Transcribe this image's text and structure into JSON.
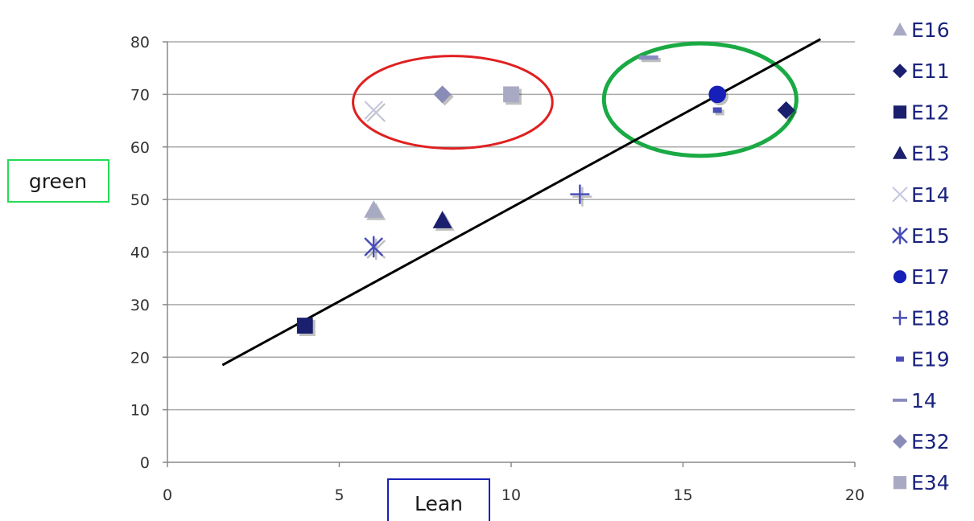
{
  "chart_data": {
    "type": "scatter",
    "title": "",
    "xlabel": "Lean",
    "ylabel": "green",
    "xlim": [
      0,
      20
    ],
    "ylim": [
      0,
      80
    ],
    "x_ticks": [
      0,
      5,
      10,
      15,
      20
    ],
    "y_ticks": [
      0,
      10,
      20,
      30,
      40,
      50,
      60,
      70,
      80
    ],
    "grid": "horizontal",
    "legend_position": "right",
    "series": [
      {
        "name": "E16",
        "marker": "triangle",
        "color": "#a8aac4",
        "points": [
          [
            6,
            48
          ]
        ]
      },
      {
        "name": "E11",
        "marker": "diamond",
        "color": "#1a1f6e",
        "points": [
          [
            18,
            67
          ]
        ]
      },
      {
        "name": "E12",
        "marker": "square",
        "color": "#1a1f6e",
        "points": [
          [
            4,
            26
          ]
        ]
      },
      {
        "name": "E13",
        "marker": "triangle",
        "color": "#1a1f6e",
        "points": [
          [
            8,
            46
          ]
        ]
      },
      {
        "name": "E14",
        "marker": "x",
        "color": "#c4c6e0",
        "points": [
          [
            6,
            67
          ]
        ]
      },
      {
        "name": "E15",
        "marker": "star",
        "color": "#4a4eb8",
        "points": [
          [
            6,
            41
          ]
        ]
      },
      {
        "name": "E17",
        "marker": "circle",
        "color": "#1620b8",
        "points": [
          [
            16,
            70
          ]
        ]
      },
      {
        "name": "E18",
        "marker": "plus",
        "color": "#4a4eb8",
        "points": [
          [
            12,
            51
          ]
        ]
      },
      {
        "name": "E19",
        "marker": "smallsquare",
        "color": "#4a4eb8",
        "points": [
          [
            16,
            67
          ]
        ]
      },
      {
        "name": "14",
        "marker": "dash",
        "color": "#8a8cc0",
        "points": [
          [
            14,
            77
          ]
        ]
      },
      {
        "name": "E32",
        "marker": "diamond",
        "color": "#8a8cb8",
        "points": [
          [
            8,
            70
          ]
        ]
      },
      {
        "name": "E34",
        "marker": "square",
        "color": "#a8aac4",
        "points": [
          [
            10,
            70
          ]
        ]
      }
    ],
    "trendline": {
      "color": "#000000",
      "points": [
        [
          1.6,
          18.5
        ],
        [
          19,
          80.5
        ]
      ]
    },
    "annotations": [
      {
        "shape": "ellipse",
        "color": "#e02020",
        "center": [
          8.3,
          68.5
        ],
        "rx": 2.9,
        "ry": 8.8
      },
      {
        "shape": "ellipse",
        "color": "#1aaa44",
        "center": [
          15.5,
          69
        ],
        "rx": 2.8,
        "ry": 10.7
      }
    ],
    "axis_label_boxes": {
      "xlabel_border": "#1a20b8",
      "ylabel_border": "#22dd55"
    }
  }
}
